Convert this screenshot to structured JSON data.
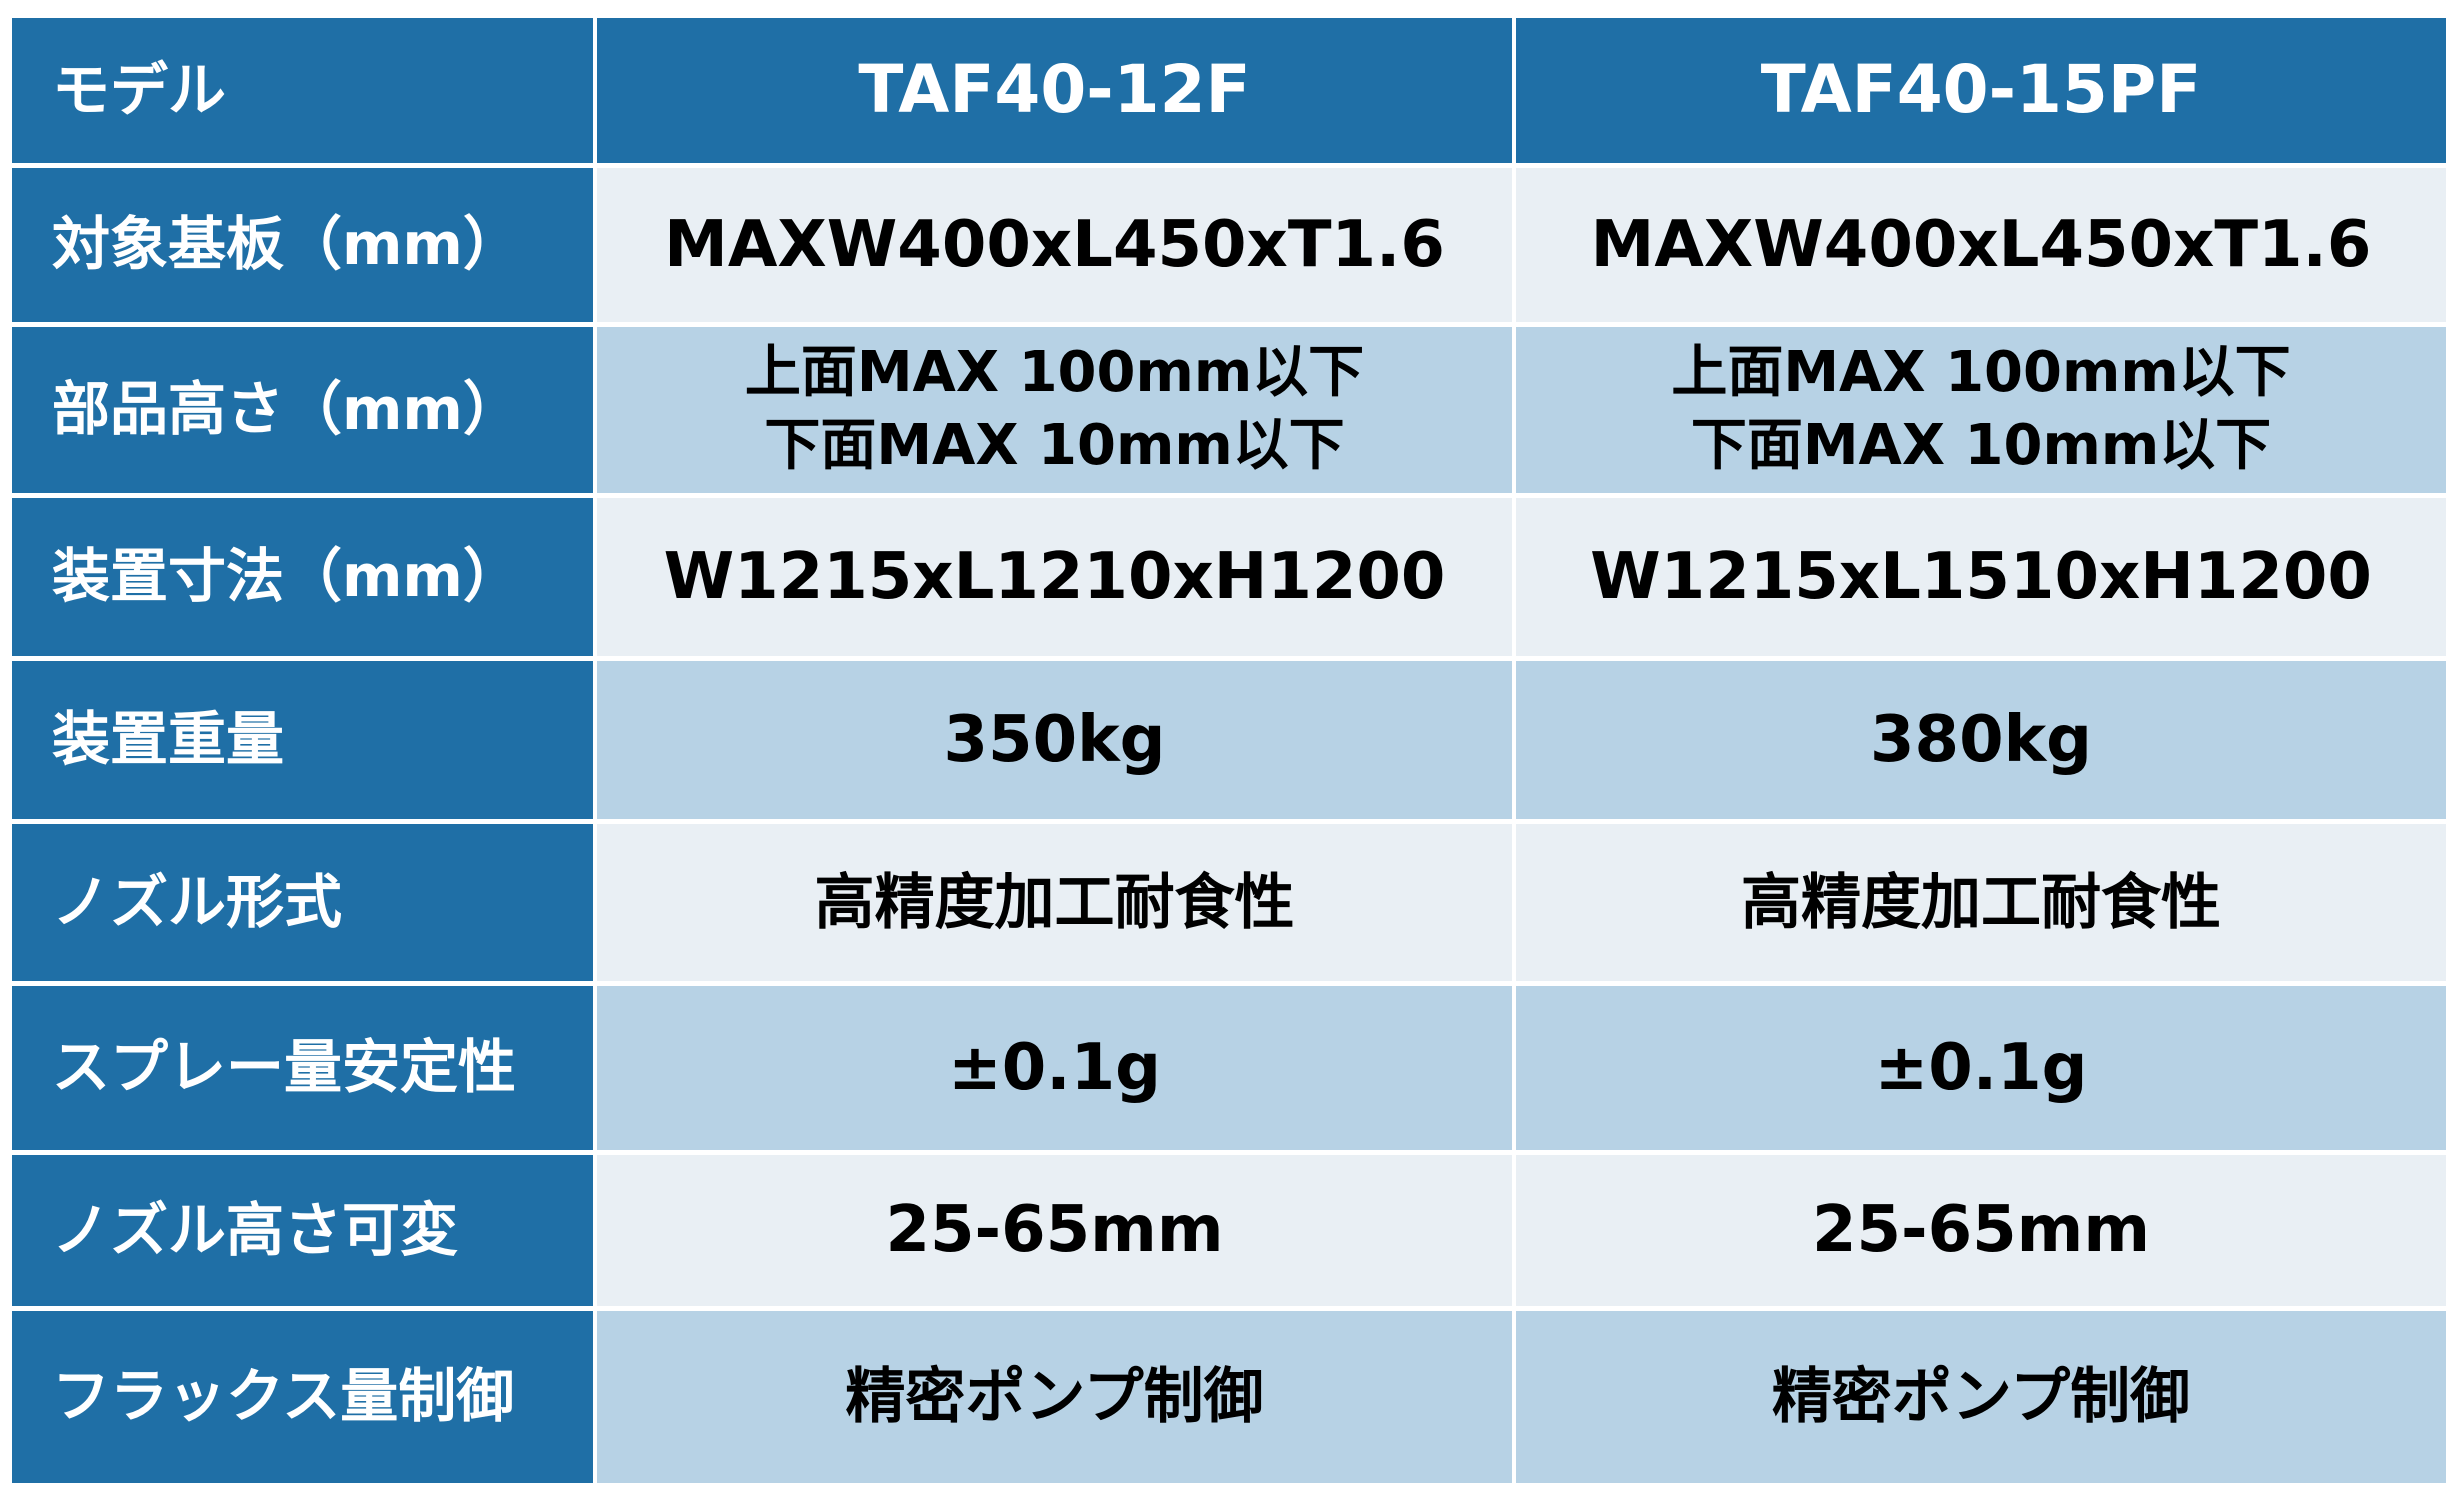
{
  "header": {
    "label": "モデル",
    "models": [
      "TAF40-12F",
      "TAF40-15PF"
    ]
  },
  "rows": [
    {
      "label": "対象基板（mm）",
      "values": [
        "MAXW400xL450xT1.6",
        "MAXW400xL450xT1.6"
      ]
    },
    {
      "label": "部品高さ（mm）",
      "values": [
        [
          "上面MAX 100mm以下",
          "下面MAX 10mm以下"
        ],
        [
          "上面MAX 100mm以下",
          "下面MAX 10mm以下"
        ]
      ]
    },
    {
      "label": "装置寸法（mm）",
      "values": [
        "W1215xL1210xH1200",
        "W1215xL1510xH1200"
      ]
    },
    {
      "label": "装置重量",
      "values": [
        "350kg",
        "380kg"
      ]
    },
    {
      "label": "ノズル形式",
      "values": [
        "高精度加工耐食性",
        "高精度加工耐食性"
      ]
    },
    {
      "label": "スプレー量安定性",
      "values": [
        "±0.1g",
        "±0.1g"
      ]
    },
    {
      "label": "ノズル高さ可変",
      "values": [
        "25-65mm",
        "25-65mm"
      ]
    },
    {
      "label": "フラックス量制御",
      "values": [
        "精密ポンプ制御",
        "精密ポンプ制御"
      ]
    }
  ],
  "colors": {
    "header": "#1f6fa6",
    "row_light": "#e9eff4",
    "row_mid": "#b7d2e5"
  }
}
